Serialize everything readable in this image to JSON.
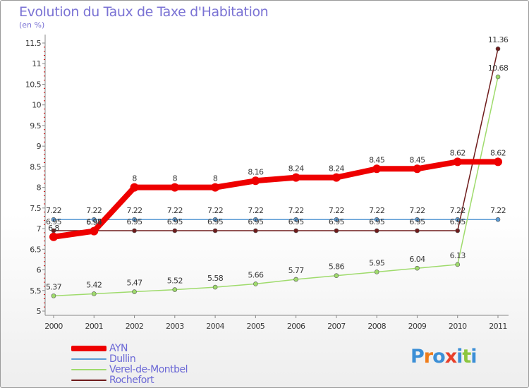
{
  "header": {
    "title": "Evolution du Taux de Taxe d'Habitation",
    "subtitle": "(en %)"
  },
  "logo": {
    "text": "Proxiti",
    "colors": [
      "#3c8fd6",
      "#f07d1a",
      "#3c8fd6",
      "#e8402a",
      "#3c8fd6",
      "#8cc63f",
      "#3c8fd6"
    ]
  },
  "chart_data": {
    "type": "line",
    "title": "Evolution du Taux de Taxe d'Habitation",
    "subtitle": "(en %)",
    "x": [
      "2000",
      "2001",
      "2002",
      "2003",
      "2004",
      "2005",
      "2006",
      "2007",
      "2008",
      "2009",
      "2010",
      "2011"
    ],
    "ylim": [
      5,
      11.5
    ],
    "yticks": [
      "5",
      "5.5",
      "6",
      "6.5",
      "7",
      "7.5",
      "8",
      "8.5",
      "9",
      "9.5",
      "10",
      "10.5",
      "11",
      "11.5"
    ],
    "grid": false,
    "legend_position": "bottom-left",
    "series": [
      {
        "name": "Rochefort",
        "color": "#6e1b1b",
        "stroke": 1.5,
        "marker": 3,
        "values": [
          6.95,
          6.95,
          6.95,
          6.95,
          6.95,
          6.95,
          6.95,
          6.95,
          6.95,
          6.95,
          6.95,
          11.36
        ],
        "labels": [
          "6.95",
          "6.95",
          "6.95",
          "6.95",
          "6.95",
          "6.95",
          "6.95",
          "6.95",
          "6.95",
          "6.95",
          "6.95",
          "11.36"
        ]
      },
      {
        "name": "Dullin",
        "color": "#5b9bd5",
        "stroke": 1.5,
        "marker": 3,
        "values": [
          7.22,
          7.22,
          7.22,
          7.22,
          7.22,
          7.22,
          7.22,
          7.22,
          7.22,
          7.22,
          7.22,
          7.22
        ],
        "labels": [
          "7.22",
          "7.22",
          "7.22",
          "7.22",
          "7.22",
          "7.22",
          "7.22",
          "7.22",
          "7.22",
          "7.22",
          "7.22",
          "7.22"
        ]
      },
      {
        "name": "Verel-de-Montbel",
        "color": "#9fdb6c",
        "stroke": 1.5,
        "marker": 3,
        "values": [
          5.37,
          5.42,
          5.47,
          5.52,
          5.58,
          5.66,
          5.77,
          5.86,
          5.95,
          6.04,
          6.13,
          10.68
        ],
        "labels": [
          "5.37",
          "5.42",
          "5.47",
          "5.52",
          "5.58",
          "5.66",
          "5.77",
          "5.86",
          "5.95",
          "6.04",
          "6.13",
          "10.68"
        ]
      },
      {
        "name": "AYN",
        "color": "#ee0000",
        "stroke": 8,
        "marker": 6,
        "values": [
          6.8,
          6.94,
          8,
          8,
          8,
          8.16,
          8.24,
          8.24,
          8.45,
          8.45,
          8.62,
          8.62
        ],
        "labels": [
          "6.8",
          "6.94",
          "8",
          "8",
          "8",
          "8.16",
          "8.24",
          "8.24",
          "8.45",
          "8.45",
          "8.62",
          "8.62"
        ]
      }
    ],
    "legend": [
      "AYN",
      "Dullin",
      "Verel-de-Montbel",
      "Rochefort"
    ]
  }
}
